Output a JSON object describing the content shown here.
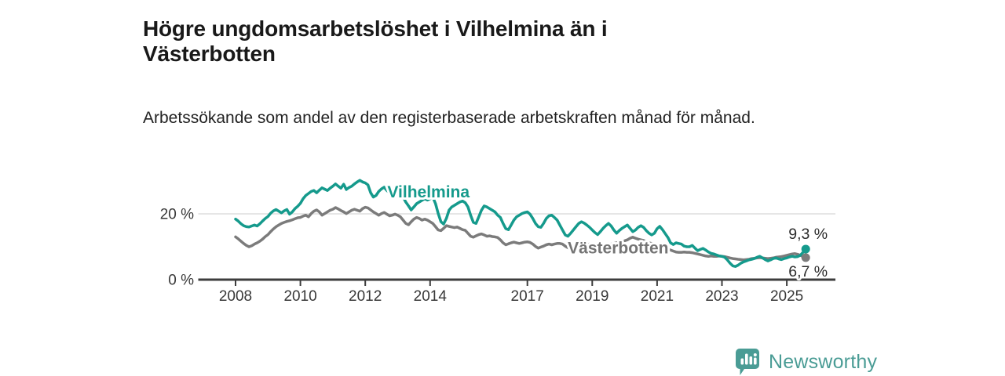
{
  "header": {
    "title": "Högre ungdomsarbetslöshet i Vilhelmina än i Västerbotten",
    "subtitle": "Arbetssökande som andel av den registerbaserade arbetskraften månad för månad."
  },
  "footer": {
    "brand": "Newsworthy"
  },
  "colors": {
    "vilhelmina": "#159a8c",
    "vasterbotten": "#7b7b7b",
    "vasterbotten_label": "#747474",
    "grid": "#d8d8d8",
    "axis": "#3d3d3d",
    "tick_text": "#383838",
    "value_text": "#2b2b2b",
    "brand_teal": "#4a9c95",
    "background": "#ffffff"
  },
  "chart_data": {
    "type": "line",
    "title": "Högre ungdomsarbetslöshet i Vilhelmina än i Västerbotten",
    "subtitle": "Arbetssökande som andel av den registerbaserade arbetskraften månad för månad.",
    "x_unit": "month",
    "x_start_year": 2008,
    "x_start_month": 1,
    "axis_x_range_years": [
      2006.85,
      2026.5
    ],
    "ylim": [
      0,
      33
    ],
    "grid_values": [
      20
    ],
    "y_ticks": [
      {
        "label": "0 %",
        "value": 0
      },
      {
        "label": "20 %",
        "value": 20
      }
    ],
    "x_ticks": [
      {
        "label": "2008",
        "year": 2008
      },
      {
        "label": "2010",
        "year": 2010
      },
      {
        "label": "2012",
        "year": 2012
      },
      {
        "label": "2014",
        "year": 2014
      },
      {
        "label": "2017",
        "year": 2017
      },
      {
        "label": "2019",
        "year": 2019
      },
      {
        "label": "2021",
        "year": 2021
      },
      {
        "label": "2023",
        "year": 2023
      },
      {
        "label": "2025",
        "year": 2025
      }
    ],
    "series": [
      {
        "name": "Vilhelmina",
        "color": "#159a8c",
        "label_color": "#159a8c",
        "label_anchor": {
          "x_year": 2013.95,
          "y_value": 26.7
        },
        "end_label": "9,3 %",
        "end_label_position": "above",
        "end_value": 9.3,
        "values": [
          18.4,
          17.8,
          17.0,
          16.4,
          16.1,
          16.0,
          16.3,
          16.6,
          16.3,
          17.0,
          17.8,
          18.6,
          19.2,
          20.2,
          20.9,
          21.3,
          20.8,
          20.3,
          20.9,
          21.3,
          19.9,
          20.6,
          21.6,
          22.3,
          23.2,
          24.6,
          25.6,
          26.2,
          26.8,
          27.1,
          26.4,
          27.2,
          27.9,
          27.5,
          27.1,
          27.8,
          28.4,
          29.1,
          28.4,
          27.8,
          29.0,
          27.4,
          28.0,
          28.4,
          29.1,
          29.7,
          30.2,
          29.7,
          29.4,
          28.8,
          26.4,
          25.1,
          25.6,
          26.8,
          27.6,
          28.1,
          27.1,
          26.4,
          26.8,
          27.1,
          26.6,
          26.1,
          25.1,
          23.6,
          22.4,
          21.2,
          22.1,
          23.1,
          23.6,
          24.1,
          24.6,
          24.2,
          24.6,
          25.1,
          23.1,
          20.1,
          17.6,
          16.9,
          18.6,
          21.1,
          22.1,
          22.6,
          23.1,
          23.6,
          23.9,
          23.4,
          22.1,
          19.6,
          17.4,
          17.1,
          19.1,
          21.1,
          22.4,
          22.1,
          21.6,
          21.1,
          20.6,
          19.6,
          18.9,
          17.1,
          15.5,
          15.2,
          16.6,
          18.1,
          19.1,
          19.6,
          20.1,
          20.4,
          20.6,
          19.9,
          18.6,
          17.1,
          16.1,
          15.9,
          17.1,
          18.6,
          19.4,
          19.6,
          18.9,
          18.1,
          16.6,
          15.1,
          13.6,
          13.2,
          14.1,
          15.1,
          16.1,
          17.1,
          17.6,
          17.2,
          16.6,
          15.9,
          15.1,
          14.3,
          13.7,
          14.6,
          15.6,
          16.4,
          17.1,
          16.3,
          15.1,
          14.1,
          14.9,
          15.6,
          16.1,
          16.6,
          15.6,
          14.6,
          15.1,
          15.9,
          16.4,
          15.9,
          14.9,
          14.1,
          13.6,
          14.1,
          15.5,
          16.2,
          15.2,
          14.0,
          12.8,
          11.2,
          10.7,
          11.2,
          11.0,
          10.8,
          10.2,
          10.0,
          10.0,
          10.4,
          9.6,
          8.8,
          9.2,
          9.5,
          9.0,
          8.4,
          8.0,
          7.8,
          7.5,
          7.2,
          7.1,
          6.8,
          6.0,
          5.0,
          4.2,
          4.0,
          4.4,
          5.0,
          5.4,
          5.7,
          6.0,
          6.2,
          6.4,
          6.8,
          7.1,
          6.6,
          6.1,
          5.7,
          6.0,
          6.4,
          6.6,
          6.3,
          6.1,
          6.4,
          6.6,
          6.9,
          7.1,
          6.9,
          7.0,
          7.4,
          8.3,
          9.3
        ]
      },
      {
        "name": "Västerbotten",
        "color": "#7b7b7b",
        "label_color": "#747474",
        "label_anchor": {
          "x_year": 2019.8,
          "y_value": 9.6
        },
        "end_label": "6,7 %",
        "end_label_position": "below",
        "end_value": 6.7,
        "values": [
          13.0,
          12.4,
          11.7,
          11.0,
          10.4,
          10.0,
          10.3,
          10.8,
          11.2,
          11.7,
          12.3,
          13.1,
          13.7,
          14.6,
          15.4,
          16.1,
          16.6,
          17.1,
          17.4,
          17.7,
          17.9,
          18.2,
          18.5,
          18.8,
          18.9,
          19.3,
          19.6,
          19.1,
          20.1,
          20.8,
          21.2,
          20.6,
          19.6,
          20.1,
          20.6,
          21.1,
          21.4,
          21.9,
          21.5,
          21.0,
          20.6,
          20.1,
          20.6,
          21.1,
          21.4,
          21.1,
          20.8,
          21.6,
          22.0,
          21.8,
          21.2,
          20.6,
          20.1,
          19.6,
          20.1,
          20.4,
          19.9,
          19.4,
          19.6,
          19.9,
          19.6,
          19.1,
          18.1,
          17.1,
          16.7,
          17.6,
          18.4,
          18.9,
          18.6,
          18.1,
          18.4,
          18.1,
          17.6,
          17.1,
          16.1,
          15.1,
          14.9,
          15.6,
          16.4,
          16.2,
          16.0,
          15.8,
          16.0,
          15.6,
          15.2,
          15.0,
          14.1,
          13.2,
          12.9,
          13.3,
          13.7,
          13.9,
          13.6,
          13.2,
          13.3,
          13.1,
          13.0,
          12.8,
          12.1,
          11.2,
          10.6,
          10.9,
          11.2,
          11.4,
          11.2,
          11.0,
          11.2,
          11.4,
          11.5,
          11.3,
          10.8,
          10.1,
          9.6,
          9.9,
          10.2,
          10.6,
          10.8,
          10.6,
          10.8,
          11.0,
          11.0,
          10.8,
          10.2,
          9.7,
          9.3,
          9.6,
          9.9,
          10.2,
          10.6,
          10.4,
          10.6,
          10.8,
          10.8,
          10.6,
          10.2,
          9.9,
          9.7,
          10.1,
          10.4,
          10.8,
          11.0,
          11.2,
          11.4,
          11.6,
          11.8,
          12.1,
          12.6,
          12.9,
          12.6,
          12.3,
          12.1,
          11.9,
          11.6,
          11.2,
          11.0,
          10.8,
          10.6,
          10.4,
          10.1,
          9.7,
          9.3,
          9.0,
          8.7,
          8.4,
          8.3,
          8.3,
          8.4,
          8.3,
          8.3,
          8.2,
          8.0,
          7.8,
          7.6,
          7.4,
          7.2,
          7.1,
          7.2,
          7.1,
          7.1,
          7.2,
          7.1,
          7.0,
          6.8,
          6.6,
          6.4,
          6.3,
          6.2,
          6.1,
          6.0,
          6.1,
          6.2,
          6.4,
          6.5,
          6.6,
          6.7,
          6.6,
          6.5,
          6.4,
          6.5,
          6.6,
          6.8,
          6.9,
          7.0,
          7.2,
          7.4,
          7.6,
          7.8,
          7.9,
          7.7,
          7.4,
          7.0,
          6.7
        ]
      }
    ],
    "legend_position": "inline-labels",
    "grid": "horizontal-only"
  }
}
